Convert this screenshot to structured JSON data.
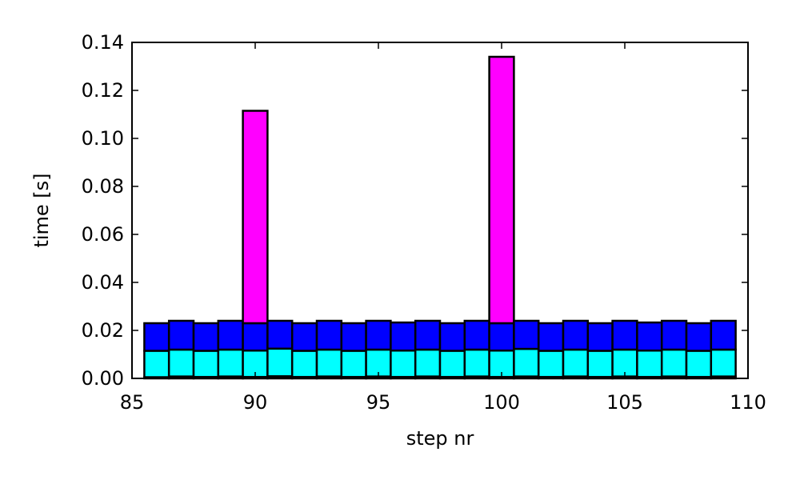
{
  "chart_data": {
    "type": "bar",
    "stacked": true,
    "title": "",
    "xlabel": "step nr",
    "ylabel": "time [s]",
    "xlim": [
      85,
      110
    ],
    "ylim": [
      0.0,
      0.14
    ],
    "xticks": [
      85,
      90,
      95,
      100,
      105,
      110
    ],
    "yticks": [
      0.0,
      0.02,
      0.04,
      0.06,
      0.08,
      0.1,
      0.12,
      0.14
    ],
    "xtick_labels": [
      "85",
      "90",
      "95",
      "100",
      "105",
      "110"
    ],
    "ytick_labels": [
      "0.00",
      "0.02",
      "0.04",
      "0.06",
      "0.08",
      "0.10",
      "0.12",
      "0.14"
    ],
    "bar_width": 1.0,
    "grid": false,
    "x": [
      86,
      87,
      88,
      89,
      90,
      91,
      92,
      93,
      94,
      95,
      96,
      97,
      98,
      99,
      100,
      101,
      102,
      103,
      104,
      105,
      106,
      107,
      108,
      109
    ],
    "series": [
      {
        "color": "#000000",
        "values": [
          0.0005,
          0.0008,
          0.0006,
          0.0008,
          0.0006,
          0.0009,
          0.0006,
          0.0008,
          0.0006,
          0.0008,
          0.0006,
          0.0008,
          0.0006,
          0.0008,
          0.0006,
          0.0008,
          0.0006,
          0.0008,
          0.0006,
          0.0008,
          0.0006,
          0.0008,
          0.0006,
          0.0008
        ]
      },
      {
        "color": "#00ffff",
        "values": [
          0.011,
          0.0112,
          0.0109,
          0.0112,
          0.011,
          0.0115,
          0.0109,
          0.0112,
          0.0109,
          0.0112,
          0.011,
          0.0112,
          0.0109,
          0.0112,
          0.011,
          0.0115,
          0.0109,
          0.0112,
          0.0109,
          0.0112,
          0.011,
          0.0112,
          0.0109,
          0.0112
        ]
      },
      {
        "color": "#0000ff",
        "values": [
          0.0115,
          0.012,
          0.0115,
          0.012,
          0.0114,
          0.0116,
          0.0115,
          0.012,
          0.0115,
          0.012,
          0.0117,
          0.012,
          0.0115,
          0.012,
          0.0114,
          0.0117,
          0.0115,
          0.012,
          0.0115,
          0.012,
          0.0117,
          0.012,
          0.0115,
          0.012
        ]
      },
      {
        "color": "#ff00ff",
        "values": [
          0,
          0,
          0,
          0,
          0.0885,
          0,
          0,
          0,
          0,
          0,
          0,
          0,
          0,
          0,
          0.111,
          0,
          0,
          0,
          0,
          0,
          0,
          0,
          0,
          0
        ]
      }
    ]
  }
}
